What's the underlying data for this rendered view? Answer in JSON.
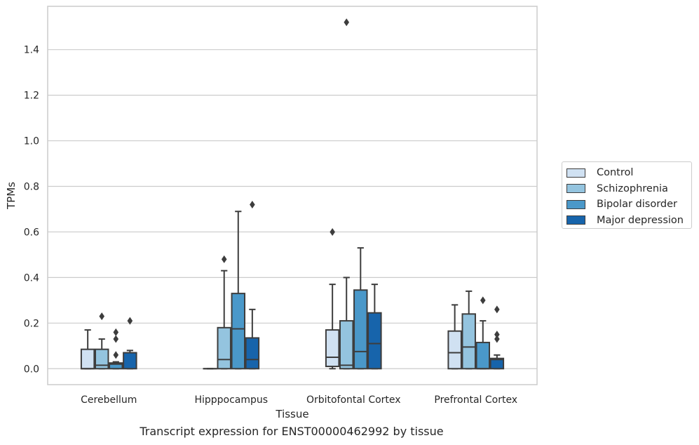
{
  "chart_data": {
    "type": "box",
    "title": "",
    "caption": "Transcript expression for ENST00000462992 by tissue",
    "xlabel": "Tissue",
    "ylabel": "TPMs",
    "ylim": [
      -0.07,
      1.59
    ],
    "yticks": [
      0.0,
      0.2,
      0.4,
      0.6,
      0.8,
      1.0,
      1.2,
      1.4
    ],
    "ytick_labels": [
      "0.0",
      "0.2",
      "0.4",
      "0.6",
      "0.8",
      "1.0",
      "1.2",
      "1.4"
    ],
    "grid": true,
    "legend_position": "right",
    "categories": [
      "Cerebellum",
      "Hipppocampus",
      "Orbitofontal Cortex",
      "Prefrontal Cortex"
    ],
    "series": [
      {
        "name": "Control",
        "color": "#d0e1f2",
        "boxes": [
          {
            "q1": 0.0,
            "median": 0.0,
            "q3": 0.085,
            "whislo": 0.0,
            "whishi": 0.17,
            "fliers": []
          },
          {
            "q1": 0.0,
            "median": 0.0,
            "q3": 0.0,
            "whislo": 0.0,
            "whishi": 0.0,
            "fliers": []
          },
          {
            "q1": 0.01,
            "median": 0.05,
            "q3": 0.17,
            "whislo": 0.0,
            "whishi": 0.37,
            "fliers": [
              0.6
            ]
          },
          {
            "q1": 0.0,
            "median": 0.07,
            "q3": 0.165,
            "whislo": 0.0,
            "whishi": 0.28,
            "fliers": []
          }
        ]
      },
      {
        "name": "Schizophrenia",
        "color": "#94c4df",
        "boxes": [
          {
            "q1": 0.0,
            "median": 0.015,
            "q3": 0.085,
            "whislo": 0.0,
            "whishi": 0.13,
            "fliers": [
              0.23
            ]
          },
          {
            "q1": 0.0,
            "median": 0.04,
            "q3": 0.18,
            "whislo": 0.0,
            "whishi": 0.43,
            "fliers": [
              0.48
            ]
          },
          {
            "q1": 0.0,
            "median": 0.015,
            "q3": 0.21,
            "whislo": 0.0,
            "whishi": 0.4,
            "fliers": [
              1.52
            ]
          },
          {
            "q1": 0.0,
            "median": 0.095,
            "q3": 0.24,
            "whislo": 0.0,
            "whishi": 0.34,
            "fliers": []
          }
        ]
      },
      {
        "name": "Bipolar disorder",
        "color": "#4a98c9",
        "boxes": [
          {
            "q1": 0.0,
            "median": 0.02,
            "q3": 0.025,
            "whislo": 0.0,
            "whishi": 0.03,
            "fliers": [
              0.06,
              0.13,
              0.16
            ]
          },
          {
            "q1": 0.0,
            "median": 0.175,
            "q3": 0.33,
            "whislo": 0.0,
            "whishi": 0.69,
            "fliers": []
          },
          {
            "q1": 0.0,
            "median": 0.075,
            "q3": 0.345,
            "whislo": 0.0,
            "whishi": 0.53,
            "fliers": []
          },
          {
            "q1": 0.0,
            "median": 0.0,
            "q3": 0.115,
            "whislo": 0.0,
            "whishi": 0.21,
            "fliers": [
              0.3
            ]
          }
        ]
      },
      {
        "name": "Major depression",
        "color": "#1764ab",
        "boxes": [
          {
            "q1": 0.0,
            "median": 0.07,
            "q3": 0.07,
            "whislo": 0.0,
            "whishi": 0.08,
            "fliers": [
              0.21
            ]
          },
          {
            "q1": 0.0,
            "median": 0.04,
            "q3": 0.135,
            "whislo": 0.0,
            "whishi": 0.26,
            "fliers": [
              0.72
            ]
          },
          {
            "q1": 0.0,
            "median": 0.11,
            "q3": 0.245,
            "whislo": 0.0,
            "whishi": 0.37,
            "fliers": []
          },
          {
            "q1": 0.0,
            "median": 0.04,
            "q3": 0.045,
            "whislo": 0.0,
            "whishi": 0.06,
            "fliers": [
              0.13,
              0.15,
              0.26
            ]
          }
        ]
      }
    ]
  }
}
